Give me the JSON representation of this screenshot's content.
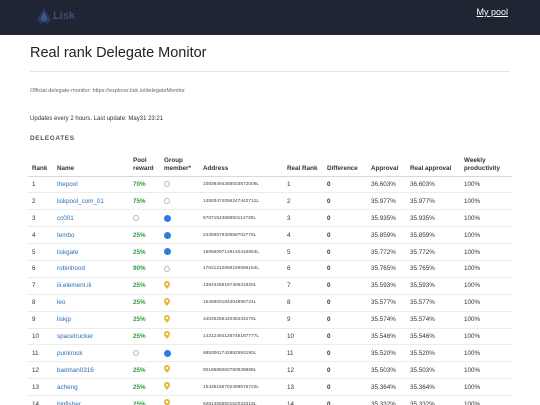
{
  "header": {
    "logo_text": "Lisk",
    "nav_link": "My pool"
  },
  "page": {
    "title": "Real rank Delegate Monitor",
    "official": "Official delegate-monitor: https://explorer.lisk.io/delegateMonitor",
    "updates": "Updates every 2 hours. Last update: May31 23:21",
    "section": "DELEGATES"
  },
  "table": {
    "columns": [
      "Rank",
      "Name",
      "Pool reward",
      "Group member*",
      "Address",
      "Real Rank",
      "Difference",
      "Approval",
      "Real approval",
      "Weekly productivity"
    ],
    "rows": [
      {
        "rank": "1",
        "name": "thepool",
        "reward": "70%",
        "group": "circle",
        "address": "10839494368003872009L",
        "real_rank": "1",
        "diff": "0",
        "approval": "36.603%",
        "real_approval": "36.603%",
        "productivity": "100%"
      },
      {
        "rank": "2",
        "name": "liskpool_com_01",
        "reward": "75%",
        "group": "circle",
        "address": "14593474056247442712L",
        "real_rank": "2",
        "diff": "0",
        "approval": "35.977%",
        "real_approval": "35.977%",
        "productivity": "100%"
      },
      {
        "rank": "3",
        "name": "cc001",
        "reward": "",
        "group": "dot",
        "address": "6787154358850114730L",
        "real_rank": "3",
        "diff": "0",
        "approval": "35.935%",
        "real_approval": "35.935%",
        "productivity": "100%"
      },
      {
        "rank": "4",
        "name": "tembo",
        "reward": "25%",
        "group": "dot",
        "address": "2435957930558702776L",
        "real_rank": "4",
        "diff": "0",
        "approval": "35.859%",
        "real_approval": "35.859%",
        "productivity": "100%"
      },
      {
        "rank": "5",
        "name": "liskgate",
        "reward": "25%",
        "group": "dot",
        "address": "16856097149140416854L",
        "real_rank": "5",
        "diff": "0",
        "approval": "35.772%",
        "real_approval": "35.772%",
        "productivity": "100%"
      },
      {
        "rank": "6",
        "name": "robinhood",
        "reward": "90%",
        "group": "circle",
        "address": "17621212658226596154L",
        "real_rank": "6",
        "diff": "0",
        "approval": "35.765%",
        "real_approval": "35.765%",
        "productivity": "100%"
      },
      {
        "rank": "7",
        "name": "iii.element.iii",
        "reward": "25%",
        "group": "pin",
        "address": "1394326516740531820L",
        "real_rank": "7",
        "diff": "0",
        "approval": "35.593%",
        "real_approval": "35.593%",
        "productivity": "100%"
      },
      {
        "rank": "8",
        "name": "leo",
        "reward": "25%",
        "group": "pin",
        "address": "1545800184304895724L",
        "real_rank": "8",
        "diff": "0",
        "approval": "35.577%",
        "real_approval": "35.577%",
        "productivity": "100%"
      },
      {
        "rank": "9",
        "name": "liskjp",
        "reward": "25%",
        "group": "pin",
        "address": "4402625644038434270L",
        "real_rank": "9",
        "diff": "0",
        "approval": "35.574%",
        "real_approval": "35.574%",
        "productivity": "100%"
      },
      {
        "rank": "10",
        "name": "spacetrucker",
        "reward": "25%",
        "group": "pin",
        "address": "14212484126746187777L",
        "real_rank": "10",
        "diff": "0",
        "approval": "35.546%",
        "real_approval": "35.546%",
        "productivity": "100%"
      },
      {
        "rank": "11",
        "name": "punkrock",
        "reward": "",
        "group": "dot",
        "address": "6853061742992593190L",
        "real_rank": "11",
        "diff": "0",
        "approval": "35.520%",
        "real_approval": "35.520%",
        "productivity": "100%"
      },
      {
        "rank": "12",
        "name": "badman0316",
        "reward": "25%",
        "group": "pin",
        "address": "8019596060790939888L",
        "real_rank": "12",
        "diff": "0",
        "approval": "35.503%",
        "real_approval": "35.503%",
        "productivity": "100%"
      },
      {
        "rank": "13",
        "name": "acheng",
        "reward": "25%",
        "group": "pin",
        "address": "15435156702499576722L",
        "real_rank": "13",
        "diff": "0",
        "approval": "35.364%",
        "real_approval": "35.364%",
        "productivity": "100%"
      },
      {
        "rank": "14",
        "name": "bigfisher",
        "reward": "25%",
        "group": "pin",
        "address": "6281405850162033319L",
        "real_rank": "14",
        "diff": "0",
        "approval": "35.332%",
        "real_approval": "35.332%",
        "productivity": "100%"
      }
    ]
  },
  "colors": {
    "topbar": "#1f2532",
    "link": "#2a6db5",
    "reward_green": "#2e9e3a",
    "group_blue": "#2c7de3",
    "pin_gold": "#e8b93a"
  },
  "icons": {
    "logo": "lisk-logo-icon",
    "group_circle": "empty-circle-icon",
    "group_dot": "blue-dot-icon",
    "group_pin": "map-pin-icon"
  }
}
